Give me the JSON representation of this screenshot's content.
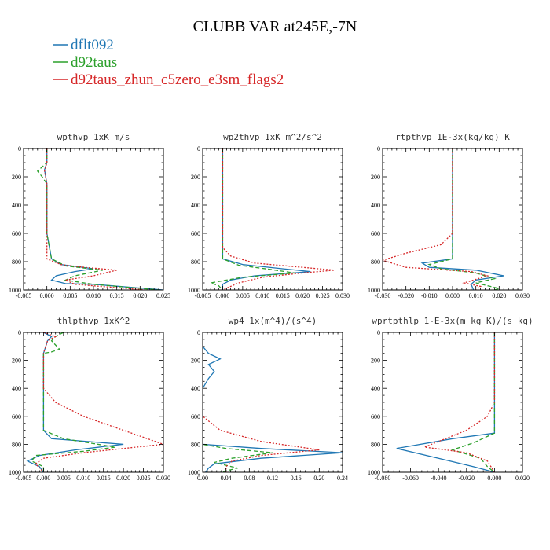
{
  "figure_title": "CLUBB VAR at245E,-7N",
  "legend": [
    {
      "name": "dflt092",
      "color": "#1f77b4",
      "dash": "solid"
    },
    {
      "name": "d92taus",
      "color": "#2ca02c",
      "dash": "dashed"
    },
    {
      "name": "d92taus_zhun_c5zero_e3sm_flags2",
      "color": "#d62728",
      "dash": "dotted"
    }
  ],
  "chart_data": [
    {
      "type": "line",
      "title": "wpthvp  1xK m/s",
      "xlim": [
        -0.005,
        0.025
      ],
      "ylim": [
        1000,
        0
      ],
      "xticks": [
        "-0.005",
        "0.000",
        "0.005",
        "0.010",
        "0.015",
        "0.020",
        "0.025"
      ],
      "xtick_values": [
        -0.005,
        0,
        0.005,
        0.01,
        0.015,
        0.02,
        0.025
      ],
      "yticks": [
        "0",
        "200",
        "400",
        "600",
        "800",
        "1000"
      ],
      "series": [
        {
          "name": "dflt092",
          "points": [
            [
              0.0,
              0
            ],
            [
              0.0,
              100
            ],
            [
              -0.0005,
              150
            ],
            [
              0.0,
              250
            ],
            [
              0.0,
              600
            ],
            [
              0.001,
              780
            ],
            [
              0.003,
              820
            ],
            [
              0.01,
              850
            ],
            [
              0.006,
              870
            ],
            [
              0.002,
              900
            ],
            [
              0.001,
              930
            ],
            [
              0.004,
              955
            ],
            [
              0.01,
              960
            ],
            [
              0.025,
              1000
            ]
          ]
        },
        {
          "name": "d92taus",
          "points": [
            [
              0.0,
              0
            ],
            [
              0.0,
              100
            ],
            [
              -0.002,
              160
            ],
            [
              -0.001,
              200
            ],
            [
              0.0,
              250
            ],
            [
              0.0,
              600
            ],
            [
              0.001,
              780
            ],
            [
              0.004,
              830
            ],
            [
              0.012,
              860
            ],
            [
              0.006,
              900
            ],
            [
              0.004,
              930
            ],
            [
              0.01,
              960
            ],
            [
              0.024,
              1000
            ]
          ]
        },
        {
          "name": "d92taus_zhun_c5zero_e3sm_flags2",
          "points": [
            [
              0.0,
              0
            ],
            [
              0.0,
              100
            ],
            [
              -0.0005,
              160
            ],
            [
              0.0,
              250
            ],
            [
              0.0,
              600
            ],
            [
              0.0,
              780
            ],
            [
              0.003,
              820
            ],
            [
              0.008,
              840
            ],
            [
              0.015,
              860
            ],
            [
              0.01,
              900
            ],
            [
              0.004,
              930
            ],
            [
              0.006,
              960
            ],
            [
              0.021,
              1000
            ]
          ]
        }
      ]
    },
    {
      "type": "line",
      "title": "wp2thvp  1xK m^2/s^2",
      "xlim": [
        -0.005,
        0.03
      ],
      "ylim": [
        1000,
        0
      ],
      "xticks": [
        "-0.005",
        "0.000",
        "0.005",
        "0.010",
        "0.015",
        "0.020",
        "0.025",
        "0.030"
      ],
      "xtick_values": [
        -0.005,
        0,
        0.005,
        0.01,
        0.015,
        0.02,
        0.025,
        0.03
      ],
      "yticks": [
        "0",
        "200",
        "400",
        "600",
        "800",
        "1000"
      ],
      "series": [
        {
          "name": "dflt092",
          "points": [
            [
              0.0,
              0
            ],
            [
              0.0,
              780
            ],
            [
              0.005,
              820
            ],
            [
              0.015,
              850
            ],
            [
              0.022,
              870
            ],
            [
              0.008,
              900
            ],
            [
              0.002,
              930
            ],
            [
              0.0,
              960
            ],
            [
              0.0,
              1000
            ]
          ]
        },
        {
          "name": "d92taus",
          "points": [
            [
              0.0,
              0
            ],
            [
              0.0,
              780
            ],
            [
              0.004,
              825
            ],
            [
              0.012,
              855
            ],
            [
              0.018,
              880
            ],
            [
              0.005,
              910
            ],
            [
              -0.003,
              950
            ],
            [
              -0.001,
              970
            ],
            [
              0.0,
              1000
            ]
          ]
        },
        {
          "name": "d92taus_zhun_c5zero_e3sm_flags2",
          "points": [
            [
              0.0,
              0
            ],
            [
              0.0,
              300
            ],
            [
              0.0,
              700
            ],
            [
              0.002,
              760
            ],
            [
              0.008,
              810
            ],
            [
              0.02,
              840
            ],
            [
              0.028,
              860
            ],
            [
              0.02,
              880
            ],
            [
              0.01,
              910
            ],
            [
              0.004,
              950
            ],
            [
              0.0,
              1000
            ]
          ]
        }
      ]
    },
    {
      "type": "line",
      "title": "rtpthvp  1E-3x(kg/kg) K",
      "xlim": [
        -0.03,
        0.03
      ],
      "ylim": [
        1000,
        0
      ],
      "xticks": [
        "-0.030",
        "-0.020",
        "-0.010",
        "0.000",
        "0.010",
        "0.020",
        "0.030"
      ],
      "xtick_values": [
        -0.03,
        -0.02,
        -0.01,
        0,
        0.01,
        0.02,
        0.03
      ],
      "yticks": [
        "0",
        "200",
        "400",
        "600",
        "800",
        "1000"
      ],
      "series": [
        {
          "name": "dflt092",
          "points": [
            [
              0.0,
              0
            ],
            [
              0.0,
              780
            ],
            [
              -0.013,
              810
            ],
            [
              -0.01,
              840
            ],
            [
              0.01,
              860
            ],
            [
              0.022,
              900
            ],
            [
              0.01,
              930
            ],
            [
              0.008,
              960
            ],
            [
              0.009,
              1000
            ]
          ]
        },
        {
          "name": "d92taus",
          "points": [
            [
              0.0,
              0
            ],
            [
              0.0,
              780
            ],
            [
              -0.01,
              820
            ],
            [
              -0.005,
              850
            ],
            [
              0.01,
              880
            ],
            [
              0.018,
              920
            ],
            [
              0.01,
              950
            ],
            [
              0.02,
              990
            ],
            [
              0.018,
              1000
            ]
          ]
        },
        {
          "name": "d92taus_zhun_c5zero_e3sm_flags2",
          "points": [
            [
              0.0,
              0
            ],
            [
              0.0,
              600
            ],
            [
              -0.005,
              680
            ],
            [
              -0.02,
              740
            ],
            [
              -0.03,
              790
            ],
            [
              -0.02,
              840
            ],
            [
              0.008,
              870
            ],
            [
              0.015,
              900
            ],
            [
              0.005,
              950
            ],
            [
              0.012,
              975
            ],
            [
              0.01,
              1000
            ]
          ]
        }
      ]
    },
    {
      "type": "line",
      "title": "thlpthvp  1xK^2",
      "xlim": [
        -0.005,
        0.03
      ],
      "ylim": [
        1000,
        0
      ],
      "xticks": [
        "-0.005",
        "0.000",
        "0.005",
        "0.010",
        "0.015",
        "0.020",
        "0.025",
        "0.030"
      ],
      "xtick_values": [
        -0.005,
        0,
        0.005,
        0.01,
        0.015,
        0.02,
        0.025,
        0.03
      ],
      "yticks": [
        "0",
        "200",
        "400",
        "600",
        "800",
        "1000"
      ],
      "series": [
        {
          "name": "dflt092",
          "points": [
            [
              0.0,
              0
            ],
            [
              0.002,
              30
            ],
            [
              0.001,
              60
            ],
            [
              0.0,
              150
            ],
            [
              0.0,
              700
            ],
            [
              0.002,
              760
            ],
            [
              0.02,
              800
            ],
            [
              0.008,
              840
            ],
            [
              -0.001,
              880
            ],
            [
              -0.004,
              920
            ],
            [
              -0.001,
              960
            ],
            [
              0.0,
              1000
            ]
          ]
        },
        {
          "name": "d92taus",
          "points": [
            [
              0.005,
              0
            ],
            [
              0.003,
              30
            ],
            [
              0.002,
              60
            ],
            [
              0.004,
              120
            ],
            [
              0.002,
              140
            ],
            [
              0.0,
              150
            ],
            [
              0.0,
              700
            ],
            [
              0.005,
              760
            ],
            [
              0.018,
              820
            ],
            [
              0.01,
              850
            ],
            [
              -0.002,
              880
            ],
            [
              -0.003,
              920
            ],
            [
              0.0,
              960
            ],
            [
              0.0,
              1000
            ]
          ]
        },
        {
          "name": "d92taus_zhun_c5zero_e3sm_flags2",
          "points": [
            [
              0.0,
              0
            ],
            [
              0.003,
              30
            ],
            [
              0.001,
              60
            ],
            [
              0.0,
              150
            ],
            [
              0.0,
              400
            ],
            [
              0.003,
              500
            ],
            [
              0.01,
              600
            ],
            [
              0.02,
              700
            ],
            [
              0.03,
              800
            ],
            [
              0.01,
              860
            ],
            [
              0.0,
              900
            ],
            [
              -0.002,
              940
            ],
            [
              0.0,
              1000
            ]
          ]
        }
      ]
    },
    {
      "type": "line",
      "title": "wp4  1x(m^4)/(s^4)",
      "xlim": [
        0.0,
        0.24
      ],
      "ylim": [
        1000,
        0
      ],
      "xticks": [
        "0.00",
        "0.04",
        "0.08",
        "0.12",
        "0.16",
        "0.20",
        "0.24"
      ],
      "xtick_values": [
        0,
        0.04,
        0.08,
        0.12,
        0.16,
        0.2,
        0.24
      ],
      "yticks": [
        "0",
        "200",
        "400",
        "600",
        "800",
        "1000"
      ],
      "series": [
        {
          "name": "dflt092",
          "points": [
            [
              0.0,
              0
            ],
            [
              0.0,
              100
            ],
            [
              0.01,
              150
            ],
            [
              0.03,
              190
            ],
            [
              0.01,
              230
            ],
            [
              0.02,
              280
            ],
            [
              0.01,
              330
            ],
            [
              0.0,
              400
            ],
            [
              0.0,
              800
            ],
            [
              0.1,
              830
            ],
            [
              0.24,
              860
            ],
            [
              0.1,
              900
            ],
            [
              0.02,
              940
            ],
            [
              0.01,
              970
            ],
            [
              0.005,
              1000
            ]
          ]
        },
        {
          "name": "d92taus",
          "points": [
            [
              0.0,
              0
            ],
            [
              0.0,
              800
            ],
            [
              0.04,
              830
            ],
            [
              0.12,
              860
            ],
            [
              0.05,
              900
            ],
            [
              0.02,
              930
            ],
            [
              0.06,
              970
            ],
            [
              0.03,
              1000
            ]
          ]
        },
        {
          "name": "d92taus_zhun_c5zero_e3sm_flags2",
          "points": [
            [
              0.0,
              0
            ],
            [
              0.0,
              400
            ],
            [
              0.0,
              600
            ],
            [
              0.03,
              700
            ],
            [
              0.1,
              780
            ],
            [
              0.2,
              840
            ],
            [
              0.1,
              880
            ],
            [
              0.05,
              920
            ],
            [
              0.04,
              960
            ],
            [
              0.04,
              1000
            ]
          ]
        }
      ]
    },
    {
      "type": "line",
      "title": "wprtpthlp  1-E-3x(m kg K)/(s kg)",
      "xlim": [
        -0.08,
        0.02
      ],
      "ylim": [
        1000,
        0
      ],
      "xticks": [
        "-0.080",
        "-0.060",
        "-0.040",
        "-0.020",
        "0.000",
        "0.020"
      ],
      "xtick_values": [
        -0.08,
        -0.06,
        -0.04,
        -0.02,
        0,
        0.02
      ],
      "yticks": [
        "0",
        "200",
        "400",
        "600",
        "800",
        "1000"
      ],
      "series": [
        {
          "name": "dflt092",
          "points": [
            [
              0.0,
              0
            ],
            [
              0.0,
              720
            ],
            [
              -0.03,
              760
            ],
            [
              -0.07,
              830
            ],
            [
              -0.04,
              900
            ],
            [
              -0.015,
              960
            ],
            [
              0.0,
              1000
            ]
          ]
        },
        {
          "name": "d92taus",
          "points": [
            [
              0.0,
              0
            ],
            [
              0.0,
              720
            ],
            [
              -0.015,
              790
            ],
            [
              -0.03,
              840
            ],
            [
              -0.01,
              900
            ],
            [
              -0.005,
              960
            ],
            [
              0.0,
              1000
            ]
          ]
        },
        {
          "name": "d92taus_zhun_c5zero_e3sm_flags2",
          "points": [
            [
              0.0,
              0
            ],
            [
              0.0,
              500
            ],
            [
              -0.005,
              600
            ],
            [
              -0.02,
              700
            ],
            [
              -0.04,
              780
            ],
            [
              -0.05,
              820
            ],
            [
              -0.02,
              860
            ],
            [
              -0.005,
              920
            ],
            [
              0.0,
              1000
            ]
          ]
        }
      ]
    }
  ]
}
